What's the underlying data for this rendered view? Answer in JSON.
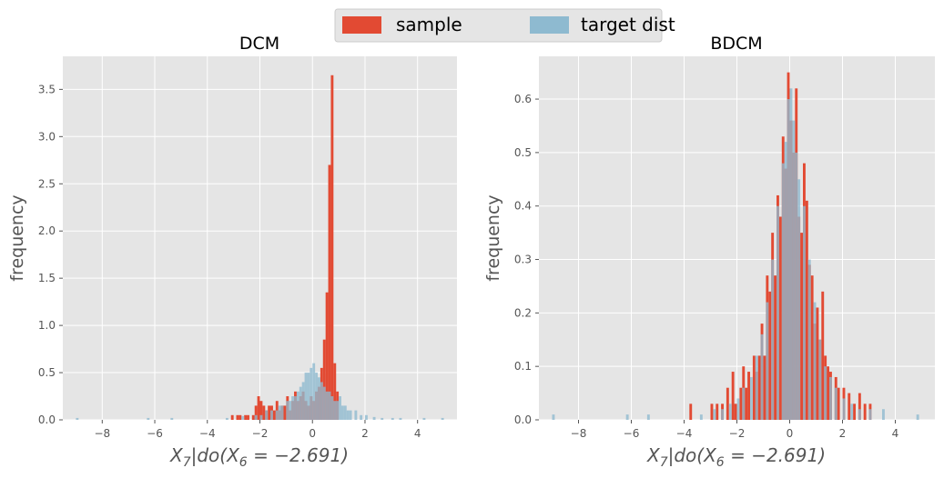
{
  "legend": {
    "items": [
      {
        "label": "sample",
        "color": "#E24A33"
      },
      {
        "label": "target dist",
        "color": "#8EBAD0"
      }
    ]
  },
  "chart_data": [
    {
      "type": "histogram",
      "title": "DCM",
      "xlabel": "X_7|do(X_6 = -2.691)",
      "ylabel": "frequency",
      "xlim": [
        -9.5,
        5.5
      ],
      "ylim": [
        0,
        3.85
      ],
      "xticks": [
        -8,
        -6,
        -4,
        -2,
        0,
        2,
        4
      ],
      "xtick_labels": [
        "−8",
        "−6",
        "−4",
        "−2",
        "0",
        "2",
        "4"
      ],
      "yticks": [
        0,
        0.5,
        1.0,
        1.5,
        2.0,
        2.5,
        3.0,
        3.5
      ],
      "ytick_labels": [
        "0.0",
        "0.5",
        "1.0",
        "1.5",
        "2.0",
        "2.5",
        "3.0",
        "3.5"
      ],
      "series": [
        {
          "name": "sample",
          "color": "#E24A33",
          "bins": [
            [
              -3.1,
              -3.0,
              0.05
            ],
            [
              -2.9,
              -2.8,
              0.05
            ],
            [
              -2.8,
              -2.7,
              0.05
            ],
            [
              -2.6,
              -2.5,
              0.05
            ],
            [
              -2.5,
              -2.4,
              0.05
            ],
            [
              -2.3,
              -2.2,
              0.05
            ],
            [
              -2.2,
              -2.1,
              0.15
            ],
            [
              -2.1,
              -2.0,
              0.25
            ],
            [
              -2.0,
              -1.9,
              0.2
            ],
            [
              -1.9,
              -1.8,
              0.15
            ],
            [
              -1.8,
              -1.7,
              0.1
            ],
            [
              -1.7,
              -1.6,
              0.15
            ],
            [
              -1.6,
              -1.5,
              0.15
            ],
            [
              -1.5,
              -1.4,
              0.1
            ],
            [
              -1.4,
              -1.3,
              0.2
            ],
            [
              -1.3,
              -1.2,
              0.1
            ],
            [
              -1.2,
              -1.1,
              0.15
            ],
            [
              -1.1,
              -1.0,
              0.15
            ],
            [
              -1.0,
              -0.9,
              0.25
            ],
            [
              -0.9,
              -0.8,
              0.1
            ],
            [
              -0.8,
              -0.7,
              0.2
            ],
            [
              -0.7,
              -0.6,
              0.3
            ],
            [
              -0.6,
              -0.5,
              0.2
            ],
            [
              -0.5,
              -0.4,
              0.25
            ],
            [
              -0.4,
              -0.3,
              0.3
            ],
            [
              -0.3,
              -0.2,
              0.2
            ],
            [
              -0.2,
              -0.1,
              0.15
            ],
            [
              -0.1,
              0.0,
              0.25
            ],
            [
              0.0,
              0.1,
              0.2
            ],
            [
              0.1,
              0.2,
              0.3
            ],
            [
              0.2,
              0.3,
              0.35
            ],
            [
              0.3,
              0.4,
              0.55
            ],
            [
              0.4,
              0.5,
              0.85
            ],
            [
              0.5,
              0.6,
              1.35
            ],
            [
              0.6,
              0.7,
              2.7
            ],
            [
              0.7,
              0.8,
              3.65
            ],
            [
              0.8,
              0.9,
              0.6
            ],
            [
              0.9,
              1.0,
              0.3
            ]
          ]
        },
        {
          "name": "target dist",
          "color": "#8EBAD0",
          "bins": [
            [
              -9.0,
              -8.9,
              0.02
            ],
            [
              -6.3,
              -6.2,
              0.02
            ],
            [
              -5.4,
              -5.3,
              0.02
            ],
            [
              -3.3,
              -3.2,
              0.02
            ],
            [
              -2.7,
              -2.6,
              0.04
            ],
            [
              -2.2,
              -2.1,
              0.05
            ],
            [
              -2.0,
              -1.9,
              0.05
            ],
            [
              -1.8,
              -1.7,
              0.1
            ],
            [
              -1.6,
              -1.5,
              0.1
            ],
            [
              -1.4,
              -1.3,
              0.1
            ],
            [
              -1.3,
              -1.2,
              0.15
            ],
            [
              -1.2,
              -1.1,
              0.15
            ],
            [
              -1.0,
              -0.9,
              0.2
            ],
            [
              -0.9,
              -0.8,
              0.2
            ],
            [
              -0.8,
              -0.7,
              0.25
            ],
            [
              -0.7,
              -0.6,
              0.25
            ],
            [
              -0.6,
              -0.5,
              0.3
            ],
            [
              -0.5,
              -0.4,
              0.35
            ],
            [
              -0.4,
              -0.3,
              0.4
            ],
            [
              -0.3,
              -0.2,
              0.5
            ],
            [
              -0.2,
              -0.1,
              0.5
            ],
            [
              -0.1,
              0.0,
              0.55
            ],
            [
              0.0,
              0.1,
              0.6
            ],
            [
              0.1,
              0.2,
              0.5
            ],
            [
              0.2,
              0.3,
              0.45
            ],
            [
              0.3,
              0.4,
              0.4
            ],
            [
              0.4,
              0.5,
              0.35
            ],
            [
              0.5,
              0.6,
              0.3
            ],
            [
              0.6,
              0.7,
              0.3
            ],
            [
              0.7,
              0.8,
              0.25
            ],
            [
              0.8,
              0.9,
              0.2
            ],
            [
              0.9,
              1.0,
              0.2
            ],
            [
              1.0,
              1.1,
              0.25
            ],
            [
              1.1,
              1.2,
              0.15
            ],
            [
              1.2,
              1.3,
              0.15
            ],
            [
              1.3,
              1.4,
              0.1
            ],
            [
              1.4,
              1.5,
              0.1
            ],
            [
              1.6,
              1.7,
              0.1
            ],
            [
              1.8,
              1.9,
              0.05
            ],
            [
              2.0,
              2.1,
              0.05
            ],
            [
              2.3,
              2.4,
              0.03
            ],
            [
              2.6,
              2.7,
              0.02
            ],
            [
              3.0,
              3.1,
              0.02
            ],
            [
              3.3,
              3.4,
              0.02
            ],
            [
              4.2,
              4.3,
              0.02
            ],
            [
              4.9,
              5.0,
              0.02
            ]
          ]
        }
      ]
    },
    {
      "type": "histogram",
      "title": "BDCM",
      "xlabel": "X_7|do(X_6 = -2.691)",
      "ylabel": "frequency",
      "xlim": [
        -9.5,
        5.5
      ],
      "ylim": [
        0,
        0.68
      ],
      "xticks": [
        -8,
        -6,
        -4,
        -2,
        0,
        2,
        4
      ],
      "xtick_labels": [
        "−8",
        "−6",
        "−4",
        "−2",
        "0",
        "2",
        "4"
      ],
      "yticks": [
        0,
        0.1,
        0.2,
        0.3,
        0.4,
        0.5,
        0.6
      ],
      "ytick_labels": [
        "0.0",
        "0.1",
        "0.2",
        "0.3",
        "0.4",
        "0.5",
        "0.6"
      ],
      "series": [
        {
          "name": "sample",
          "color": "#E24A33",
          "bins": [
            [
              -3.8,
              -3.7,
              0.03
            ],
            [
              -3.0,
              -2.9,
              0.03
            ],
            [
              -2.8,
              -2.7,
              0.03
            ],
            [
              -2.6,
              -2.5,
              0.03
            ],
            [
              -2.4,
              -2.3,
              0.06
            ],
            [
              -2.2,
              -2.1,
              0.09
            ],
            [
              -2.1,
              -2.0,
              0.03
            ],
            [
              -1.9,
              -1.8,
              0.06
            ],
            [
              -1.8,
              -1.7,
              0.1
            ],
            [
              -1.7,
              -1.6,
              0.06
            ],
            [
              -1.6,
              -1.5,
              0.09
            ],
            [
              -1.4,
              -1.3,
              0.12
            ],
            [
              -1.3,
              -1.2,
              0.09
            ],
            [
              -1.2,
              -1.1,
              0.12
            ],
            [
              -1.1,
              -1.0,
              0.18
            ],
            [
              -1.0,
              -0.9,
              0.12
            ],
            [
              -0.9,
              -0.8,
              0.27
            ],
            [
              -0.8,
              -0.7,
              0.24
            ],
            [
              -0.7,
              -0.6,
              0.35
            ],
            [
              -0.6,
              -0.5,
              0.27
            ],
            [
              -0.5,
              -0.4,
              0.42
            ],
            [
              -0.4,
              -0.3,
              0.38
            ],
            [
              -0.3,
              -0.2,
              0.53
            ],
            [
              -0.2,
              -0.1,
              0.47
            ],
            [
              -0.1,
              0.0,
              0.65
            ],
            [
              0.0,
              0.1,
              0.56
            ],
            [
              0.1,
              0.2,
              0.5
            ],
            [
              0.2,
              0.3,
              0.62
            ],
            [
              0.3,
              0.4,
              0.38
            ],
            [
              0.4,
              0.5,
              0.35
            ],
            [
              0.5,
              0.6,
              0.48
            ],
            [
              0.6,
              0.7,
              0.41
            ],
            [
              0.7,
              0.8,
              0.29
            ],
            [
              0.8,
              0.9,
              0.27
            ],
            [
              0.9,
              1.0,
              0.18
            ],
            [
              1.0,
              1.1,
              0.21
            ],
            [
              1.1,
              1.2,
              0.15
            ],
            [
              1.2,
              1.3,
              0.24
            ],
            [
              1.3,
              1.4,
              0.12
            ],
            [
              1.4,
              1.5,
              0.1
            ],
            [
              1.5,
              1.6,
              0.09
            ],
            [
              1.7,
              1.8,
              0.08
            ],
            [
              1.8,
              1.9,
              0.06
            ],
            [
              2.0,
              2.1,
              0.06
            ],
            [
              2.2,
              2.3,
              0.05
            ],
            [
              2.4,
              2.5,
              0.03
            ],
            [
              2.6,
              2.7,
              0.05
            ],
            [
              2.8,
              2.9,
              0.03
            ],
            [
              3.0,
              3.1,
              0.03
            ]
          ]
        },
        {
          "name": "target dist",
          "color": "#8EBAD0",
          "bins": [
            [
              -9.0,
              -8.9,
              0.01
            ],
            [
              -6.2,
              -6.1,
              0.01
            ],
            [
              -5.4,
              -5.3,
              0.01
            ],
            [
              -3.4,
              -3.3,
              0.01
            ],
            [
              -2.9,
              -2.8,
              0.02
            ],
            [
              -2.6,
              -2.5,
              0.02
            ],
            [
              -2.3,
              -2.2,
              0.03
            ],
            [
              -2.0,
              -1.9,
              0.04
            ],
            [
              -1.8,
              -1.7,
              0.06
            ],
            [
              -1.5,
              -1.4,
              0.08
            ],
            [
              -1.3,
              -1.2,
              0.12
            ],
            [
              -1.1,
              -1.0,
              0.16
            ],
            [
              -0.9,
              -0.8,
              0.22
            ],
            [
              -0.7,
              -0.6,
              0.3
            ],
            [
              -0.5,
              -0.4,
              0.4
            ],
            [
              -0.3,
              -0.2,
              0.48
            ],
            [
              -0.2,
              -0.1,
              0.52
            ],
            [
              -0.1,
              0.0,
              0.6
            ],
            [
              0.0,
              0.1,
              0.62
            ],
            [
              0.1,
              0.2,
              0.56
            ],
            [
              0.2,
              0.3,
              0.5
            ],
            [
              0.3,
              0.4,
              0.45
            ],
            [
              0.5,
              0.6,
              0.4
            ],
            [
              0.7,
              0.8,
              0.3
            ],
            [
              0.9,
              1.0,
              0.22
            ],
            [
              1.1,
              1.2,
              0.15
            ],
            [
              1.3,
              1.4,
              0.1
            ],
            [
              1.5,
              1.6,
              0.08
            ],
            [
              1.7,
              1.8,
              0.06
            ],
            [
              2.0,
              2.1,
              0.04
            ],
            [
              2.3,
              2.4,
              0.03
            ],
            [
              2.6,
              2.7,
              0.02
            ],
            [
              3.0,
              3.1,
              0.02
            ],
            [
              3.5,
              3.6,
              0.02
            ],
            [
              4.8,
              4.9,
              0.01
            ]
          ]
        }
      ]
    }
  ]
}
